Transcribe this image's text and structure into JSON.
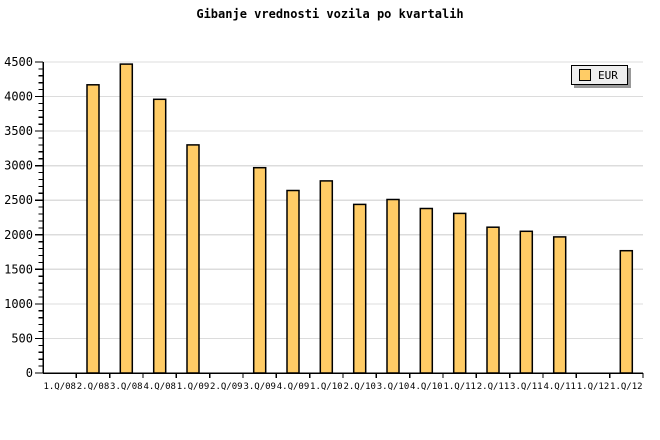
{
  "chart_data": {
    "type": "bar",
    "title": "Gibanje vrednosti vozila po kvartalih",
    "categories": [
      "1.Q/08",
      "2.Q/08",
      "3.Q/08",
      "4.Q/08",
      "1.Q/09",
      "2.Q/09",
      "3.Q/09",
      "4.Q/09",
      "1.Q/10",
      "2.Q/10",
      "3.Q/10",
      "4.Q/10",
      "1.Q/11",
      "2.Q/11",
      "3.Q/11",
      "4.Q/11",
      "1.Q/12",
      "1.Q/12"
    ],
    "series": [
      {
        "name": "EUR",
        "values": [
          null,
          4170,
          4470,
          3960,
          3300,
          null,
          2970,
          2640,
          2780,
          2440,
          2510,
          2380,
          2310,
          2110,
          2050,
          1970,
          null,
          1770
        ]
      }
    ],
    "xlabel": "",
    "ylabel": "",
    "ylim": [
      0,
      4500
    ],
    "yticks": [
      0,
      500,
      1000,
      1500,
      2000,
      2500,
      3000,
      3500,
      4000,
      4500
    ],
    "y_minor_step": 100,
    "grid": "horizontal-major",
    "legend_position": "top-right",
    "colors": {
      "bar_fill": "#ffcc66",
      "bar_border": "#000000",
      "grid_line": "#dcdcdc",
      "axis": "#000000",
      "text": "#000000",
      "legend_bg": "#eeeeee",
      "legend_shadow": "#999999",
      "background": "#ffffff"
    }
  }
}
